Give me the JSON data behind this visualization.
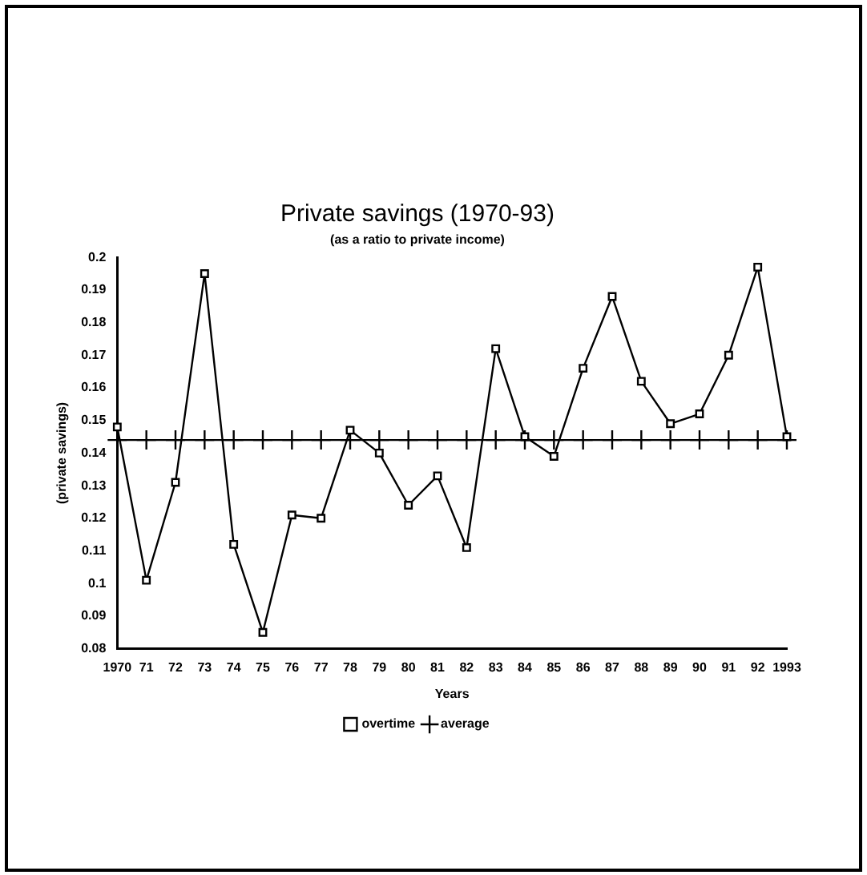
{
  "chart_data": {
    "type": "line",
    "title": "Private savings (1970-93)",
    "subtitle": "(as a ratio to private income)",
    "xlabel": "Years",
    "ylabel": "(private savings)",
    "categories": [
      "1970",
      "71",
      "72",
      "73",
      "74",
      "75",
      "76",
      "77",
      "78",
      "79",
      "80",
      "81",
      "82",
      "83",
      "84",
      "85",
      "86",
      "87",
      "88",
      "89",
      "90",
      "91",
      "92",
      "1993"
    ],
    "series": [
      {
        "name": "overtime",
        "color": "#000000",
        "marker": "square",
        "values": [
          0.148,
          0.101,
          0.131,
          0.195,
          0.112,
          0.085,
          0.121,
          0.12,
          0.147,
          0.14,
          0.124,
          0.133,
          0.111,
          0.172,
          0.145,
          0.139,
          0.166,
          0.188,
          0.162,
          0.149,
          0.152,
          0.17,
          0.197,
          0.145
        ]
      },
      {
        "name": "average",
        "color": "#000000",
        "marker": "cross",
        "values": [
          0.144,
          0.144,
          0.144,
          0.144,
          0.144,
          0.144,
          0.144,
          0.144,
          0.144,
          0.144,
          0.144,
          0.144,
          0.144,
          0.144,
          0.144,
          0.144,
          0.144,
          0.144,
          0.144,
          0.144,
          0.144,
          0.144,
          0.144,
          0.144
        ]
      }
    ],
    "ylim": [
      0.08,
      0.2
    ],
    "yticks": [
      0.08,
      0.09,
      0.1,
      0.11,
      0.12,
      0.13,
      0.14,
      0.15,
      0.16,
      0.17,
      0.18,
      0.19,
      0.2
    ],
    "grid": false,
    "legend": "bottom",
    "line_style": "solid"
  }
}
